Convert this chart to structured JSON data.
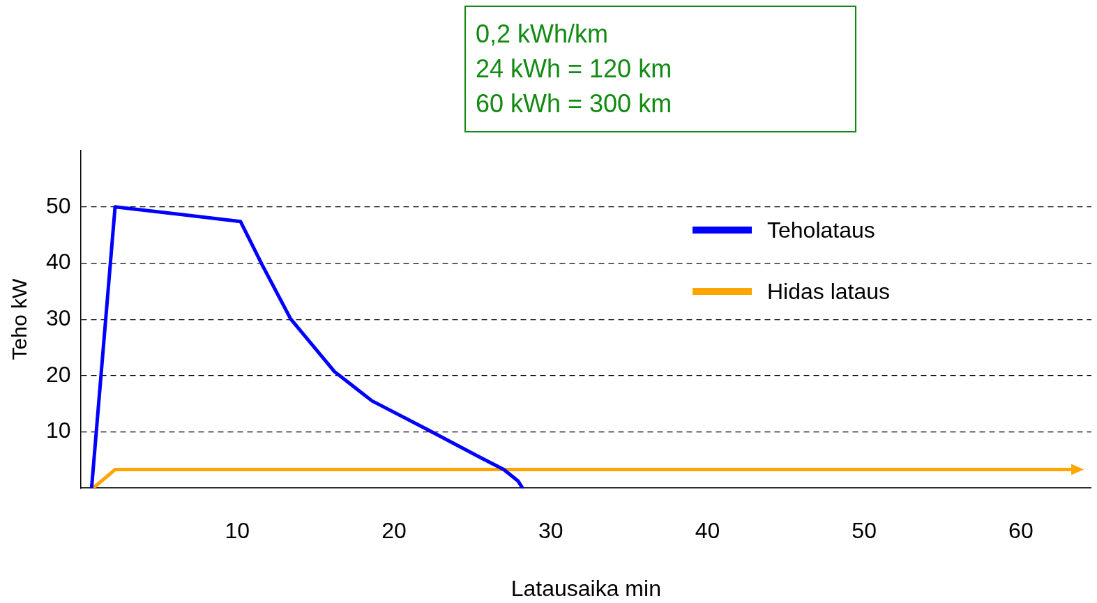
{
  "chart_data": {
    "type": "line",
    "xlabel": "Latausaika min",
    "ylabel": "Teho kW",
    "annotations": [
      "0,2 kWh/km",
      "24 kWh = 120 km",
      "60 kWh = 300 km"
    ],
    "xlim": [
      0,
      64.5
    ],
    "xticks": [
      10,
      20,
      30,
      40,
      50,
      60
    ],
    "ylim": [
      0,
      60
    ],
    "yticks": [
      10,
      20,
      30,
      40,
      50
    ],
    "grid": "y",
    "legend": "top right",
    "marker": "none",
    "series": [
      {
        "name": "Teholataus",
        "color": "#0000ff",
        "x": [
          0.7,
          2.2,
          10.2,
          11.6,
          13.4,
          16.2,
          18.6,
          22.2,
          25.4,
          27,
          27.9,
          28.2
        ],
        "values": [
          0,
          50,
          47.4,
          39.6,
          30.1,
          20.7,
          15.5,
          10.3,
          5.6,
          3.3,
          1.3,
          0
        ]
      },
      {
        "name": "Hidas lataus",
        "color": "#ffa500",
        "x": [
          0.8,
          2.2,
          63.3
        ],
        "values": [
          0,
          3.3,
          3.3
        ]
      }
    ]
  }
}
